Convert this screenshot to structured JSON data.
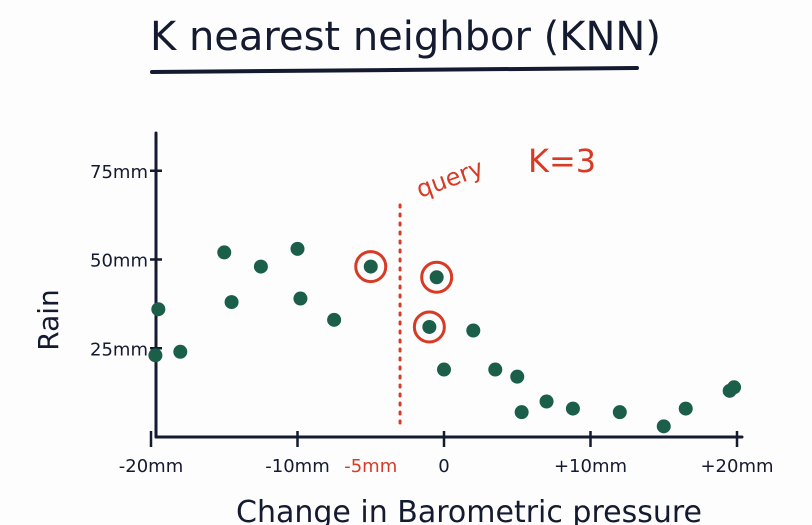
{
  "title": "K nearest neighbor (KNN)",
  "colors": {
    "ink": "#141a30",
    "point": "#1b5e4a",
    "accent": "#d83a25"
  },
  "annotations": {
    "query": "query",
    "k_value": "K=3"
  },
  "chart_data": {
    "type": "scatter",
    "title": "K nearest neighbor (KNN)",
    "xlabel": "Change in Barometric pressure",
    "ylabel": "Rain",
    "xlim": [
      -22,
      21
    ],
    "ylim": [
      0,
      80
    ],
    "x_ticks": [
      {
        "value": -20,
        "label": "-20mm"
      },
      {
        "value": -10,
        "label": "-10mm"
      },
      {
        "value": -5,
        "label": "-5mm",
        "highlight": true
      },
      {
        "value": 0,
        "label": "0"
      },
      {
        "value": 10,
        "label": "+10mm"
      },
      {
        "value": 20,
        "label": "+20mm"
      }
    ],
    "y_ticks": [
      {
        "value": 25,
        "label": "25mm"
      },
      {
        "value": 50,
        "label": "50mm"
      },
      {
        "value": 75,
        "label": "75mm"
      }
    ],
    "query_x": -3,
    "points": [
      {
        "x": -19.5,
        "y": 36
      },
      {
        "x": -19.7,
        "y": 23
      },
      {
        "x": -18,
        "y": 24
      },
      {
        "x": -15,
        "y": 52
      },
      {
        "x": -14.5,
        "y": 38
      },
      {
        "x": -12.5,
        "y": 48
      },
      {
        "x": -10,
        "y": 53
      },
      {
        "x": -9.8,
        "y": 39
      },
      {
        "x": -7.5,
        "y": 33
      },
      {
        "x": -5,
        "y": 48,
        "selected": true
      },
      {
        "x": -0.5,
        "y": 45,
        "selected": true
      },
      {
        "x": -1,
        "y": 31,
        "selected": true
      },
      {
        "x": 0,
        "y": 19
      },
      {
        "x": 2,
        "y": 30
      },
      {
        "x": 3.5,
        "y": 19
      },
      {
        "x": 5,
        "y": 17
      },
      {
        "x": 5.3,
        "y": 7
      },
      {
        "x": 7,
        "y": 10
      },
      {
        "x": 8.8,
        "y": 8
      },
      {
        "x": 12,
        "y": 7
      },
      {
        "x": 15,
        "y": 3
      },
      {
        "x": 16.5,
        "y": 8
      },
      {
        "x": 19.5,
        "y": 13
      },
      {
        "x": 19.8,
        "y": 14
      }
    ]
  }
}
